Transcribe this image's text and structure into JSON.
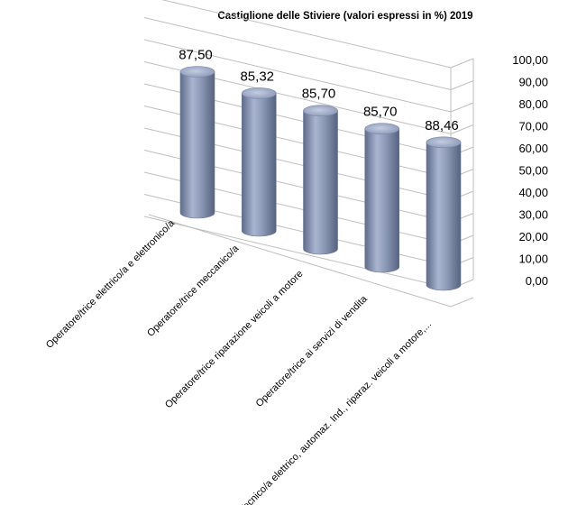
{
  "chart_data": {
    "type": "bar",
    "style": "3d-cylinder",
    "title": "Castiglione delle Stiviere (valori espressi in %) 2019",
    "categories": [
      "Operatore/trice elettrico/a e elettronico/a",
      "Operatore/trice meccanico/a",
      "Operatore/trice riparazione veicoli a motore",
      "Operatore/trice ai servizi di vendita",
      "Tecnico/a elettrico, automaz. Ind., riparaz. veicoli a motore,..."
    ],
    "values": [
      87.5,
      85.32,
      85.7,
      85.7,
      88.46
    ],
    "data_labels": [
      "87,50",
      "85,32",
      "85,70",
      "85,70",
      "88,46"
    ],
    "yticks": [
      "0,00",
      "10,00",
      "20,00",
      "30,00",
      "40,00",
      "50,00",
      "60,00",
      "70,00",
      "80,00",
      "90,00",
      "100,00"
    ],
    "ylim": [
      0,
      100
    ],
    "bar_color": "#8d9ab7",
    "grid": true
  }
}
